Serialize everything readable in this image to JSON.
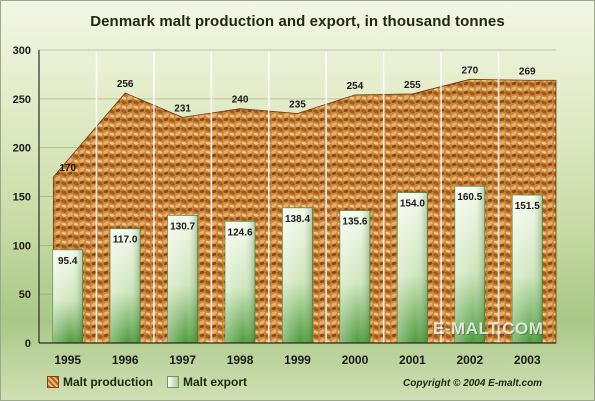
{
  "title": "Denmark malt production and export, in thousand tonnes",
  "chart_data": {
    "type": "bar",
    "categories": [
      "1995",
      "1996",
      "1997",
      "1998",
      "1999",
      "2000",
      "2001",
      "2002",
      "2003"
    ],
    "series": [
      {
        "name": "Malt production",
        "style": "area",
        "values": [
          170,
          256,
          231,
          240,
          235,
          254,
          255,
          270,
          269
        ],
        "color": "#b5651d"
      },
      {
        "name": "Malt export",
        "style": "bar",
        "values": [
          95.4,
          117.0,
          130.7,
          124.6,
          138.4,
          135.6,
          154.0,
          160.5,
          151.5
        ],
        "color": "#7bb261"
      }
    ],
    "production_labels": [
      "170",
      "256",
      "231",
      "240",
      "235",
      "254",
      "255",
      "270",
      "269"
    ],
    "export_labels": [
      "95.4",
      "117.0",
      "130.7",
      "124.6",
      "138.4",
      "135.6",
      "154.0",
      "160.5",
      "151.5"
    ],
    "y_ticks": [
      "0",
      "50",
      "100",
      "150",
      "200",
      "250",
      "300"
    ],
    "ylim": [
      0,
      300
    ],
    "grid": true,
    "legend": "bottom-left"
  },
  "legend": {
    "production": "Malt production",
    "export": "Malt export"
  },
  "watermark": "E-MALT.COM",
  "copyright": "Copyright © 2004  E-malt.com"
}
